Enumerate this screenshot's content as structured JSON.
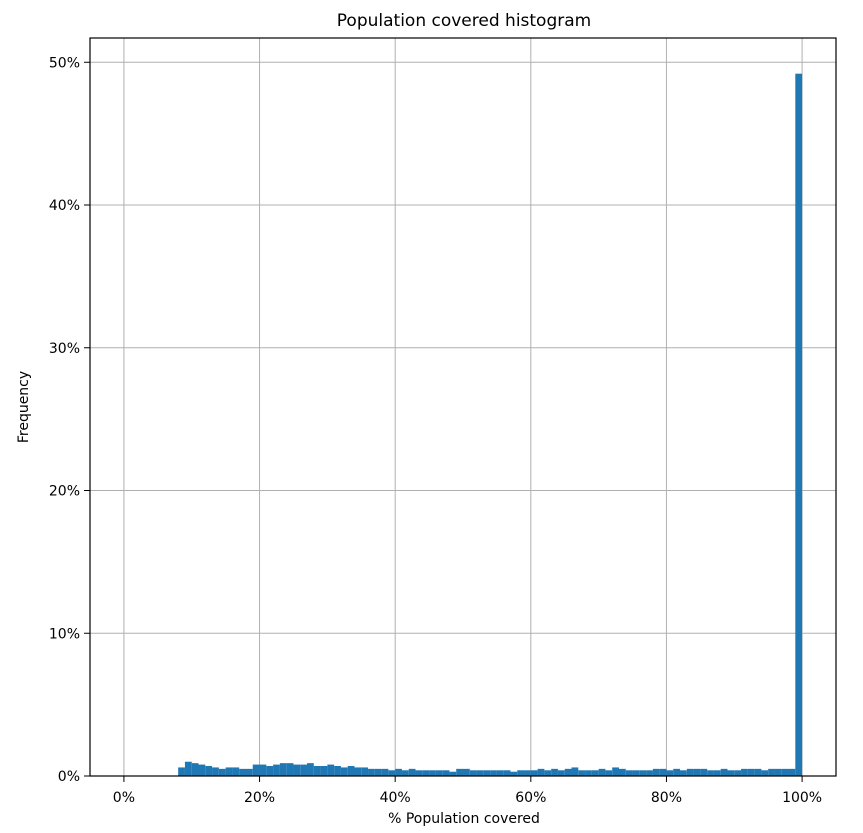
{
  "chart_data": {
    "type": "bar",
    "title": "Population covered histogram",
    "xlabel": "% Population covered",
    "ylabel": "Frequency",
    "xlim": [
      -5,
      105
    ],
    "ylim": [
      0,
      51.7
    ],
    "grid": true,
    "bar_color": "#1f77b4",
    "x_ticks": [
      {
        "value": 0,
        "label": "0%"
      },
      {
        "value": 20,
        "label": "20%"
      },
      {
        "value": 40,
        "label": "40%"
      },
      {
        "value": 60,
        "label": "60%"
      },
      {
        "value": 80,
        "label": "80%"
      },
      {
        "value": 100,
        "label": "100%"
      }
    ],
    "y_ticks": [
      {
        "value": 0,
        "label": "0%"
      },
      {
        "value": 10,
        "label": "10%"
      },
      {
        "value": 20,
        "label": "20%"
      },
      {
        "value": 30,
        "label": "30%"
      },
      {
        "value": 40,
        "label": "40%"
      },
      {
        "value": 50,
        "label": "50%"
      }
    ],
    "bins": {
      "start": 8,
      "width": 1,
      "values": [
        0.6,
        1.0,
        0.9,
        0.8,
        0.7,
        0.6,
        0.5,
        0.6,
        0.6,
        0.5,
        0.5,
        0.8,
        0.8,
        0.7,
        0.8,
        0.9,
        0.9,
        0.8,
        0.8,
        0.9,
        0.7,
        0.7,
        0.8,
        0.7,
        0.6,
        0.7,
        0.6,
        0.6,
        0.5,
        0.5,
        0.5,
        0.4,
        0.5,
        0.4,
        0.5,
        0.4,
        0.4,
        0.4,
        0.4,
        0.4,
        0.3,
        0.5,
        0.5,
        0.4,
        0.4,
        0.4,
        0.4,
        0.4,
        0.4,
        0.3,
        0.4,
        0.4,
        0.4,
        0.5,
        0.4,
        0.5,
        0.4,
        0.5,
        0.6,
        0.4,
        0.4,
        0.4,
        0.5,
        0.4,
        0.6,
        0.5,
        0.4,
        0.4,
        0.4,
        0.4,
        0.5,
        0.5,
        0.4,
        0.5,
        0.4,
        0.5,
        0.5,
        0.5,
        0.4,
        0.4,
        0.5,
        0.4,
        0.4,
        0.5,
        0.5,
        0.5,
        0.4,
        0.5,
        0.5,
        0.5,
        0.5,
        49.2
      ]
    }
  }
}
